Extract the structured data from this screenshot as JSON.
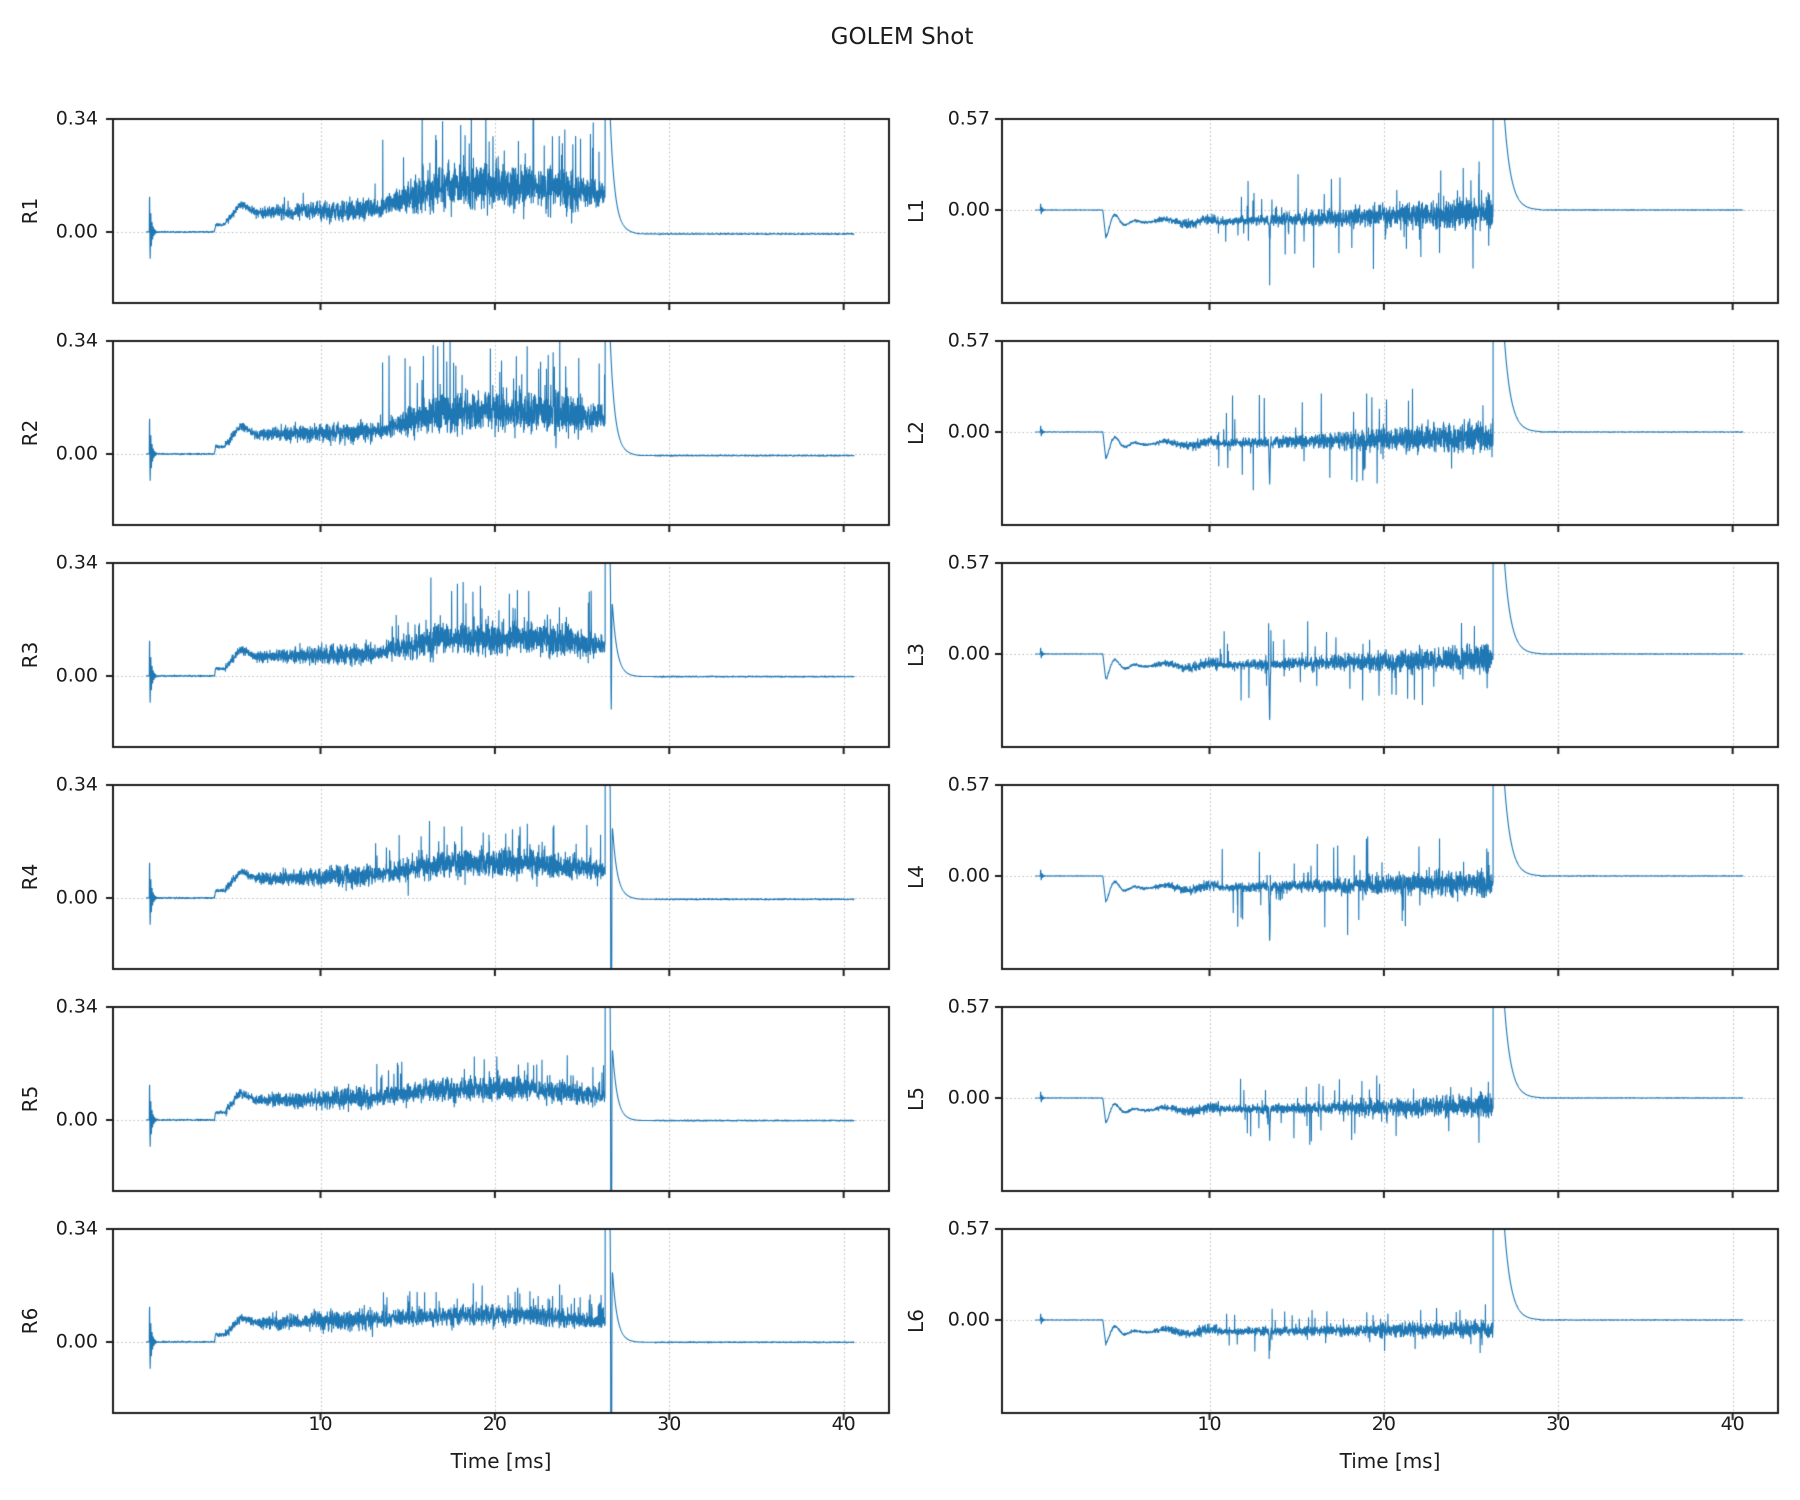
{
  "title": "GOLEM Shot",
  "chart_data": {
    "type": "line",
    "title": "GOLEM Shot",
    "xlabel": "Time [ms]",
    "n_rows": 6,
    "n_cols": 2,
    "xlim": [
      -1.9,
      42.6
    ],
    "xticks": [
      {
        "value": 10,
        "label": "10"
      },
      {
        "value": 20,
        "label": "20"
      },
      {
        "value": 30,
        "label": "30"
      },
      {
        "value": 40,
        "label": "40"
      }
    ],
    "time_range_ms": [
      0,
      40.6
    ],
    "sample_step_ms": 0.01,
    "style": {
      "line_color": "#1f77b4",
      "grid_color": "#bbbbbb",
      "grid_style": "dotted",
      "spine_color": "#1c1c1c",
      "text_color": "#1c1c1c",
      "background": "#ffffff"
    },
    "events_ms": {
      "startup_spike": 0.2,
      "flat_zero_until": 3.9,
      "breakdown": 3.9,
      "current_bump_peak": 5.4,
      "fluctuation_growth_start": 13,
      "disruption_spike": 26.5,
      "decay_complete": 29.5,
      "signal_end": 40.6
    },
    "columns": [
      {
        "id": "left",
        "ytick_labels": [
          "0.34",
          "0.00"
        ],
        "ytick_values": [
          0.34,
          0
        ],
        "ylim": [
          -0.214,
          0.34
        ],
        "panels": [
          {
            "label": "R1",
            "family": "R",
            "seed": 101,
            "bump_amp": 0.085,
            "plateau_mean": 0.135,
            "noise_amp": 0.06,
            "spike_amp": 0.22,
            "disruption_down_spike": 0,
            "tail_offset": -0.006
          },
          {
            "label": "R2",
            "family": "R",
            "seed": 102,
            "bump_amp": 0.085,
            "plateau_mean": 0.128,
            "noise_amp": 0.056,
            "spike_amp": 0.23,
            "disruption_down_spike": 0,
            "tail_offset": -0.005
          },
          {
            "label": "R3",
            "family": "R",
            "seed": 103,
            "bump_amp": 0.08,
            "plateau_mean": 0.114,
            "noise_amp": 0.048,
            "spike_amp": 0.17,
            "disruption_down_spike": 0.38,
            "tail_offset": -0.002
          },
          {
            "label": "R4",
            "family": "R",
            "seed": 104,
            "bump_amp": 0.08,
            "plateau_mean": 0.104,
            "noise_amp": 0.041,
            "spike_amp": 0.13,
            "disruption_down_spike": 1.2,
            "tail_offset": -0.004
          },
          {
            "label": "R5",
            "family": "R",
            "seed": 105,
            "bump_amp": 0.083,
            "plateau_mean": 0.094,
            "noise_amp": 0.035,
            "spike_amp": 0.11,
            "disruption_down_spike": 1.2,
            "tail_offset": -0.002
          },
          {
            "label": "R6",
            "family": "R",
            "seed": 106,
            "bump_amp": 0.072,
            "plateau_mean": 0.08,
            "noise_amp": 0.028,
            "spike_amp": 0.085,
            "disruption_down_spike": 1.2,
            "tail_offset": -0.001
          }
        ]
      },
      {
        "id": "right",
        "ytick_labels": [
          "0.57",
          "0.00"
        ],
        "ytick_values": [
          0.57,
          0
        ],
        "ylim": [
          -0.583,
          0.57
        ],
        "panels": [
          {
            "label": "L1",
            "family": "L",
            "seed": 201,
            "drop_amp": 0.17,
            "end_mean": -0.012,
            "noise_amp": 0.1,
            "spike_amp": 0.3,
            "mid_down_spike": 0.15
          },
          {
            "label": "L2",
            "family": "L",
            "seed": 202,
            "drop_amp": 0.165,
            "end_mean": -0.03,
            "noise_amp": 0.1,
            "spike_amp": 0.32,
            "mid_down_spike": 0.25
          },
          {
            "label": "L3",
            "family": "L",
            "seed": 203,
            "drop_amp": 0.16,
            "end_mean": -0.035,
            "noise_amp": 0.09,
            "spike_amp": 0.3,
            "mid_down_spike": 0.35
          },
          {
            "label": "L4",
            "family": "L",
            "seed": 204,
            "drop_amp": 0.16,
            "end_mean": -0.042,
            "noise_amp": 0.085,
            "spike_amp": 0.28,
            "mid_down_spike": 0.35
          },
          {
            "label": "L5",
            "family": "L",
            "seed": 205,
            "drop_amp": 0.155,
            "end_mean": -0.05,
            "noise_amp": 0.07,
            "spike_amp": 0.22,
            "mid_down_spike": 0.15
          },
          {
            "label": "L6",
            "family": "L",
            "seed": 206,
            "drop_amp": 0.15,
            "end_mean": -0.058,
            "noise_amp": 0.052,
            "spike_amp": 0.15,
            "mid_down_spike": 0.12
          }
        ]
      }
    ]
  }
}
